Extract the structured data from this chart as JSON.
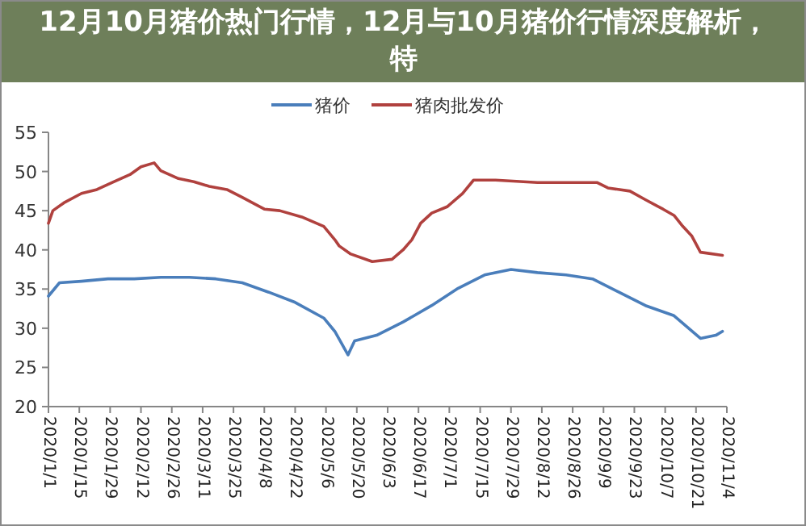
{
  "chart_data": {
    "type": "line",
    "title": "12月10月猪价热门行情，12月与10月猪价行情深度解析，特",
    "xlim": [
      "2020-01-01",
      "2020-11-04"
    ],
    "xticks": [
      {
        "value": "2020-01-01",
        "label": "2020/1/1"
      },
      {
        "value": "2020-01-15",
        "label": "2020/1/15"
      },
      {
        "value": "2020-01-29",
        "label": "2020/1/29"
      },
      {
        "value": "2020-02-12",
        "label": "2020/2/12"
      },
      {
        "value": "2020-02-26",
        "label": "2020/2/26"
      },
      {
        "value": "2020-03-11",
        "label": "2020/3/11"
      },
      {
        "value": "2020-03-25",
        "label": "2020/3/25"
      },
      {
        "value": "2020-04-08",
        "label": "2020/4/8"
      },
      {
        "value": "2020-04-22",
        "label": "2020/4/22"
      },
      {
        "value": "2020-05-06",
        "label": "2020/5/6"
      },
      {
        "value": "2020-05-20",
        "label": "2020/5/20"
      },
      {
        "value": "2020-06-03",
        "label": "2020/6/3"
      },
      {
        "value": "2020-06-17",
        "label": "2020/6/17"
      },
      {
        "value": "2020-07-01",
        "label": "2020/7/1"
      },
      {
        "value": "2020-07-15",
        "label": "2020/7/15"
      },
      {
        "value": "2020-07-29",
        "label": "2020/7/29"
      },
      {
        "value": "2020-08-12",
        "label": "2020/8/12"
      },
      {
        "value": "2020-08-26",
        "label": "2020/8/26"
      },
      {
        "value": "2020-09-09",
        "label": "2020/9/9"
      },
      {
        "value": "2020-09-23",
        "label": "2020/9/23"
      },
      {
        "value": "2020-10-07",
        "label": "2020/10/7"
      },
      {
        "value": "2020-10-21",
        "label": "2020/10/21"
      },
      {
        "value": "2020-11-04",
        "label": "2020/11/4"
      }
    ],
    "ylim": [
      20,
      55
    ],
    "yticks": [
      20,
      25,
      30,
      35,
      40,
      45,
      50,
      55
    ],
    "grid": false,
    "legend": "top",
    "marker": "none",
    "line_style": "solid",
    "series": [
      {
        "name": "猪价",
        "color": "#4a7ebb",
        "x": [
          "2020-01-01",
          "2020-01-06",
          "2020-01-16",
          "2020-01-28",
          "2020-02-09",
          "2020-02-21",
          "2020-03-05",
          "2020-03-17",
          "2020-03-29",
          "2020-04-10",
          "2020-04-22",
          "2020-05-05",
          "2020-05-10",
          "2020-05-16",
          "2020-05-19",
          "2020-05-29",
          "2020-06-10",
          "2020-06-23",
          "2020-07-05",
          "2020-07-17",
          "2020-07-29",
          "2020-08-10",
          "2020-08-23",
          "2020-09-04",
          "2020-09-16",
          "2020-09-28",
          "2020-10-11",
          "2020-10-23",
          "2020-10-30",
          "2020-11-02"
        ],
        "values": [
          34.1,
          35.8,
          36.0,
          36.3,
          36.3,
          36.5,
          36.5,
          36.3,
          35.8,
          34.6,
          33.3,
          31.3,
          29.6,
          26.6,
          28.4,
          29.1,
          30.8,
          32.9,
          35.1,
          36.8,
          37.5,
          37.1,
          36.8,
          36.3,
          34.6,
          32.9,
          31.6,
          28.7,
          29.1,
          29.6
        ]
      },
      {
        "name": "猪肉批发价",
        "color": "#b0413e",
        "x": [
          "2020-01-01",
          "2020-01-03",
          "2020-01-08",
          "2020-01-16",
          "2020-01-23",
          "2020-01-30",
          "2020-02-07",
          "2020-02-12",
          "2020-02-18",
          "2020-02-21",
          "2020-02-29",
          "2020-03-07",
          "2020-03-14",
          "2020-03-22",
          "2020-03-29",
          "2020-04-08",
          "2020-04-15",
          "2020-04-25",
          "2020-05-05",
          "2020-05-10",
          "2020-05-12",
          "2020-05-17",
          "2020-05-27",
          "2020-06-05",
          "2020-06-10",
          "2020-06-14",
          "2020-06-18",
          "2020-06-23",
          "2020-06-30",
          "2020-07-07",
          "2020-07-12",
          "2020-07-22",
          "2020-08-10",
          "2020-08-23",
          "2020-09-06",
          "2020-09-11",
          "2020-09-21",
          "2020-09-28",
          "2020-10-06",
          "2020-10-11",
          "2020-10-15",
          "2020-10-19",
          "2020-10-23",
          "2020-11-02"
        ],
        "values": [
          43.4,
          45.0,
          46.0,
          47.2,
          47.7,
          48.6,
          49.6,
          50.6,
          51.1,
          50.1,
          49.1,
          48.7,
          48.1,
          47.7,
          46.7,
          45.2,
          45.0,
          44.2,
          43.0,
          41.3,
          40.5,
          39.5,
          38.5,
          38.8,
          40.0,
          41.3,
          43.4,
          44.7,
          45.5,
          47.2,
          48.9,
          48.9,
          48.6,
          48.6,
          48.6,
          47.9,
          47.5,
          46.4,
          45.2,
          44.4,
          43.0,
          41.8,
          39.7,
          39.3
        ]
      }
    ]
  }
}
